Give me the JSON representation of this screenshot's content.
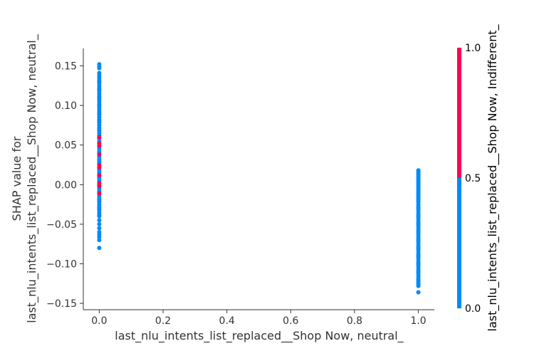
{
  "chart_data": {
    "type": "scatter",
    "xlabel": "last_nlu_intents_list_replaced__Shop Now, neutral_",
    "ylabel": [
      "SHAP value for",
      "last_nlu_intents_list_replaced__Shop Now, neutral_"
    ],
    "xlim": [
      -0.05,
      1.05
    ],
    "ylim": [
      -0.158,
      0.172
    ],
    "x_ticks": [
      "0.0",
      "0.2",
      "0.4",
      "0.6",
      "0.8",
      "1.0"
    ],
    "y_ticks": [
      "−0.15",
      "−0.10",
      "−0.05",
      "0.00",
      "0.05",
      "0.10",
      "0.15"
    ],
    "grid": false,
    "colorbar": {
      "label": "last_nlu_intents_list_replaced__Shop Now, Indifferent_",
      "ticks": [
        "0.0",
        "0.5",
        "1.0"
      ],
      "low_color": "#008bfb",
      "high_color": "#ff0052"
    },
    "series": [
      {
        "x": 0.0,
        "color_value": 0,
        "y_values": [
          0.152,
          0.149,
          0.147,
          0.141,
          0.138,
          0.135,
          0.132,
          0.13,
          0.128,
          0.125,
          0.122,
          0.12,
          0.118,
          0.115,
          0.112,
          0.11,
          0.108,
          0.105,
          0.102,
          0.1,
          0.098,
          0.095,
          0.092,
          0.09,
          0.088,
          0.085,
          0.082,
          0.08,
          0.078,
          0.075,
          0.072,
          0.07,
          0.068,
          0.065,
          0.062,
          0.06,
          0.058,
          0.055,
          0.052,
          0.048,
          0.045,
          0.042,
          0.04,
          0.038,
          0.035,
          0.032,
          0.03,
          0.028,
          0.025,
          0.022,
          0.02,
          0.018,
          0.015,
          0.012,
          0.01,
          0.008,
          0.005,
          0.002,
          0.0,
          -0.002,
          -0.005,
          -0.008,
          -0.01,
          -0.012,
          -0.015,
          -0.018,
          -0.02,
          -0.022,
          -0.025,
          -0.028,
          -0.03,
          -0.032,
          -0.035,
          -0.038,
          -0.04,
          -0.045,
          -0.05,
          -0.055,
          -0.06,
          -0.063,
          -0.066,
          -0.07,
          -0.08
        ]
      },
      {
        "x": 0.0,
        "color_value": 1,
        "y_values": [
          0.06,
          0.052,
          0.049,
          0.038,
          0.025,
          0.022,
          0.012,
          0.002,
          -0.002,
          -0.011
        ]
      },
      {
        "x": 1.0,
        "color_value": 0,
        "y_values": [
          0.018,
          0.016,
          0.014,
          0.012,
          0.01,
          0.008,
          0.006,
          0.004,
          0.002,
          0.0,
          -0.002,
          -0.004,
          -0.006,
          -0.008,
          -0.01,
          -0.012,
          -0.014,
          -0.016,
          -0.018,
          -0.02,
          -0.022,
          -0.025,
          -0.028,
          -0.03,
          -0.032,
          -0.035,
          -0.038,
          -0.04,
          -0.042,
          -0.045,
          -0.048,
          -0.05,
          -0.052,
          -0.055,
          -0.058,
          -0.06,
          -0.062,
          -0.065,
          -0.068,
          -0.07,
          -0.072,
          -0.075,
          -0.078,
          -0.08,
          -0.082,
          -0.085,
          -0.088,
          -0.09,
          -0.092,
          -0.095,
          -0.098,
          -0.1,
          -0.102,
          -0.105,
          -0.108,
          -0.11,
          -0.112,
          -0.115,
          -0.118,
          -0.12,
          -0.122,
          -0.124,
          -0.126,
          -0.128,
          -0.136
        ]
      }
    ]
  }
}
